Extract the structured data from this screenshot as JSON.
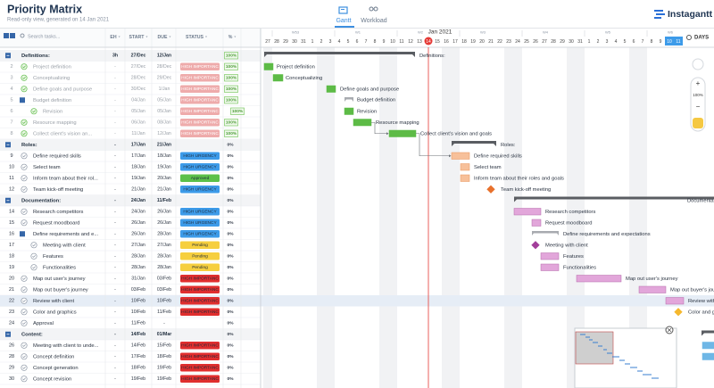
{
  "header": {
    "title": "Priority Matrix",
    "subtitle": "Read-only view, generated on 14 Jan 2021",
    "tabs": [
      "Gantt",
      "Workload"
    ],
    "brand": "Instagantt"
  },
  "table": {
    "search_placeholder": "Search tasks...",
    "columns": [
      "EH",
      "START",
      "DUE",
      "STATUS",
      "%"
    ],
    "rows": [
      {
        "name": "Definitions:",
        "group": true,
        "eh": "3h",
        "start": "27/Dec",
        "due": "12/Jan",
        "progress": "100%",
        "done": true
      },
      {
        "id": 2,
        "name": "Project definition",
        "eh": "-",
        "start": "27/Dec",
        "due": "28/Dec",
        "status": "HIGH IMPORTANC",
        "status_color": "#e06666",
        "progress": "100%",
        "done": true
      },
      {
        "id": 3,
        "name": "Conceptualizing",
        "eh": "-",
        "start": "28/Dec",
        "due": "29/Dec",
        "status": "HIGH IMPORTANC",
        "status_color": "#e06666",
        "progress": "100%",
        "done": true
      },
      {
        "id": 4,
        "name": "Define goals and purpose",
        "eh": "-",
        "start": "30/Dec",
        "due": "1/Jan",
        "status": "HIGH IMPORTANC",
        "status_color": "#e06666",
        "progress": "100%",
        "done": true
      },
      {
        "id": 5,
        "name": "Budget definition",
        "subgroup": true,
        "eh": "-",
        "start": "04/Jan",
        "due": "05/Jan",
        "status": "HIGH IMPORTANC",
        "status_color": "#e06666",
        "progress": "100%",
        "done": true
      },
      {
        "id": 6,
        "name": "Revision",
        "indent": true,
        "eh": "-",
        "start": "05/Jan",
        "due": "05/Jan",
        "status": "HIGH IMPORTANC",
        "status_color": "#e06666",
        "progress": "100%",
        "done": true
      },
      {
        "id": 7,
        "name": "Resource mapping",
        "eh": "-",
        "start": "06/Jan",
        "due": "08/Jan",
        "status": "HIGH IMPORTANC",
        "status_color": "#e06666",
        "progress": "100%",
        "done": true
      },
      {
        "id": 8,
        "name": "Collect client's vision and goals",
        "short": "Collect client's vision an...",
        "eh": "-",
        "start": "11/Jan",
        "due": "12/Jan",
        "status": "HIGH IMPORTANC",
        "status_color": "#e06666",
        "progress": "100%",
        "done": true
      },
      {
        "name": "Roles:",
        "group": true,
        "eh": "-",
        "start": "17/Jan",
        "due": "21/Jan",
        "progress": "0%"
      },
      {
        "id": 9,
        "name": "Define required skills",
        "eh": "-",
        "start": "17/Jan",
        "due": "18/Jan",
        "status": "HIGH URGENCY",
        "status_color": "#3d9be9",
        "progress": "0%"
      },
      {
        "id": 10,
        "name": "Select team",
        "eh": "-",
        "start": "18/Jan",
        "due": "19/Jan",
        "status": "HIGH URGENCY",
        "status_color": "#3d9be9",
        "progress": "0%"
      },
      {
        "id": 11,
        "name": "Inform team about their roles and goals",
        "short": "Inform team about their rol...",
        "eh": "-",
        "start": "19/Jan",
        "due": "20/Jan",
        "status": "Approved",
        "status_color": "#5cc04a",
        "progress": "0%"
      },
      {
        "id": 12,
        "name": "Team kick-off meeting",
        "eh": "-",
        "start": "21/Jan",
        "due": "21/Jan",
        "status": "HIGH URGENCY",
        "status_color": "#3d9be9",
        "progress": "0%"
      },
      {
        "name": "Documentation:",
        "group": true,
        "eh": "-",
        "start": "24/Jan",
        "due": "11/Feb",
        "progress": "0%"
      },
      {
        "id": 14,
        "name": "Research competitors",
        "eh": "-",
        "start": "24/Jan",
        "due": "26/Jan",
        "status": "HIGH URGENCY",
        "status_color": "#3d9be9",
        "progress": "0%"
      },
      {
        "id": 15,
        "name": "Request moodboard",
        "eh": "-",
        "start": "26/Jan",
        "due": "26/Jan",
        "status": "HIGH URGENCY",
        "status_color": "#3d9be9",
        "progress": "0%"
      },
      {
        "id": 16,
        "name": "Define requirements and expectations",
        "short": "Define requirements and e...",
        "subgroup": true,
        "eh": "-",
        "start": "26/Jan",
        "due": "28/Jan",
        "status": "HIGH URGENCY",
        "status_color": "#3d9be9",
        "progress": "0%"
      },
      {
        "id": 17,
        "name": "Meeting with client",
        "indent": true,
        "eh": "-",
        "start": "27/Jan",
        "due": "27/Jan",
        "status": "Pending",
        "status_color": "#f6cf3f",
        "progress": "0%"
      },
      {
        "id": 18,
        "name": "Features",
        "indent": true,
        "eh": "-",
        "start": "28/Jan",
        "due": "28/Jan",
        "status": "Pending",
        "status_color": "#f6cf3f",
        "progress": "0%"
      },
      {
        "id": 19,
        "name": "Functionalities",
        "indent": true,
        "eh": "-",
        "start": "28/Jan",
        "due": "28/Jan",
        "status": "Pending",
        "status_color": "#f6cf3f",
        "progress": "0%"
      },
      {
        "id": 20,
        "name": "Map out user's journey",
        "eh": "-",
        "start": "31/Jan",
        "due": "03/Feb",
        "status": "HIGH IMPORTANC",
        "status_color": "#e02e2e",
        "progress": "0%"
      },
      {
        "id": 21,
        "name": "Map out buyer's journey",
        "eh": "-",
        "start": "03/Feb",
        "due": "03/Feb",
        "status": "HIGH IMPORTANC",
        "status_color": "#e02e2e",
        "progress": "0%"
      },
      {
        "id": 22,
        "name": "Review with client",
        "selected": true,
        "eh": "-",
        "start": "10/Feb",
        "due": "10/Feb",
        "status": "HIGH IMPORTANC",
        "status_color": "#e02e2e",
        "progress": "0%"
      },
      {
        "id": 23,
        "name": "Color and graphics",
        "eh": "-",
        "start": "10/Feb",
        "due": "11/Feb",
        "status": "HIGH IMPORTANC",
        "status_color": "#e02e2e",
        "progress": "0%"
      },
      {
        "id": 24,
        "name": "Approval",
        "eh": "-",
        "start": "11/Feb",
        "due": "-",
        "progress": "0%"
      },
      {
        "name": "Content:",
        "group": true,
        "eh": "-",
        "start": "14/Feb",
        "due": "01/Mar",
        "progress": "0%"
      },
      {
        "id": 26,
        "name": "Meeting with client to unde...",
        "eh": "-",
        "start": "14/Feb",
        "due": "15/Feb",
        "status": "HIGH IMPORTANC",
        "status_color": "#e02e2e",
        "progress": "0%"
      },
      {
        "id": 28,
        "name": "Concept definition",
        "eh": "-",
        "start": "17/Feb",
        "due": "18/Feb",
        "status": "HIGH IMPORTANC",
        "status_color": "#e02e2e",
        "progress": "0%"
      },
      {
        "id": 29,
        "name": "Concept generation",
        "eh": "-",
        "start": "18/Feb",
        "due": "19/Feb",
        "status": "HIGH IMPORTANC",
        "status_color": "#e02e2e",
        "progress": "0%"
      },
      {
        "id": 30,
        "name": "Concept revision",
        "eh": "-",
        "start": "19/Feb",
        "due": "19/Feb",
        "status": "HIGH IMPORTANC",
        "status_color": "#e02e2e",
        "progress": "0%"
      }
    ]
  },
  "timeline": {
    "month": "Jan 2021",
    "weeks": [
      "W53",
      "W1",
      "W2",
      "W3",
      "W4",
      "W5",
      "W6"
    ],
    "days": [
      27,
      28,
      29,
      30,
      31,
      1,
      2,
      3,
      4,
      5,
      6,
      7,
      8,
      9,
      10,
      11,
      12,
      13,
      14,
      15,
      16,
      17,
      18,
      19,
      20,
      21,
      22,
      23,
      24,
      25,
      26,
      27,
      28,
      29,
      30,
      31,
      1,
      2,
      3,
      4,
      5,
      6,
      7,
      8,
      9,
      10,
      11
    ],
    "scale": "DAYS",
    "zoom": "100%"
  }
}
